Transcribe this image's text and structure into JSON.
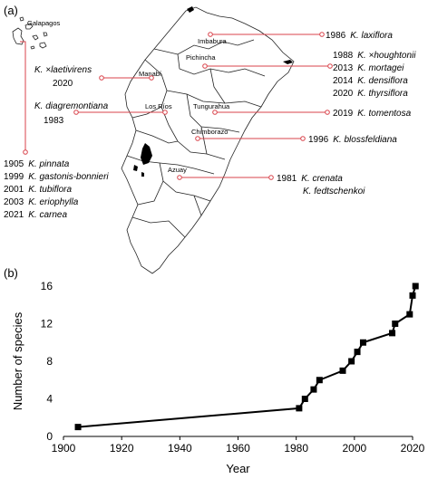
{
  "panels": {
    "a": "(a)",
    "b": "(b)"
  },
  "map": {
    "provinces": [
      "Galapagos",
      "Imbabura",
      "Pichincha",
      "Manabí",
      "Los Ríos",
      "Tungurahua",
      "Chimborazo",
      "Azuay"
    ],
    "entries": [
      {
        "year": "1986",
        "species": "K. laxiflora"
      },
      {
        "year": "1988",
        "species": "K. ×houghtonii"
      },
      {
        "year": "2013",
        "species": "K. mortagei"
      },
      {
        "year": "2014",
        "species": "K. densiflora"
      },
      {
        "year": "2020",
        "species": "K. thyrsiflora"
      },
      {
        "year": "2019",
        "species": "K. tomentosa"
      },
      {
        "year": "1996",
        "species": "K. blossfeldiana"
      },
      {
        "year": "1981",
        "species": "K.  crenata"
      },
      {
        "year": "",
        "species": "K. fedtschenkoi"
      },
      {
        "year": "2020",
        "species": "K.  ×laetivirens"
      },
      {
        "year": "1983",
        "species": "K.  diagremontiana"
      },
      {
        "year": "1905",
        "species": "K.  pinnata"
      },
      {
        "year": "1999",
        "species": "K. gastonis-bonnieri"
      },
      {
        "year": "2001",
        "species": "K. tubiflora"
      },
      {
        "year": "2003",
        "species": "K. eriophylla"
      },
      {
        "year": "2021",
        "species": "K. carnea"
      }
    ]
  },
  "chart_data": {
    "type": "line",
    "xlabel": "Year",
    "ylabel": "Number of species",
    "xlim": [
      1900,
      2020
    ],
    "ylim": [
      0,
      16
    ],
    "xticks": [
      1900,
      1920,
      1940,
      1960,
      1980,
      2000,
      2020
    ],
    "yticks": [
      0,
      4,
      8,
      12,
      16
    ],
    "series": [
      {
        "x": [
          1905,
          1981,
          1983,
          1986,
          1988,
          1996,
          1999,
          2001,
          2003,
          2013,
          2014,
          2019,
          2020,
          2021
        ],
        "y": [
          1,
          3,
          4,
          5,
          6,
          7,
          8,
          9,
          10,
          11,
          12,
          13,
          15,
          16
        ]
      }
    ]
  }
}
